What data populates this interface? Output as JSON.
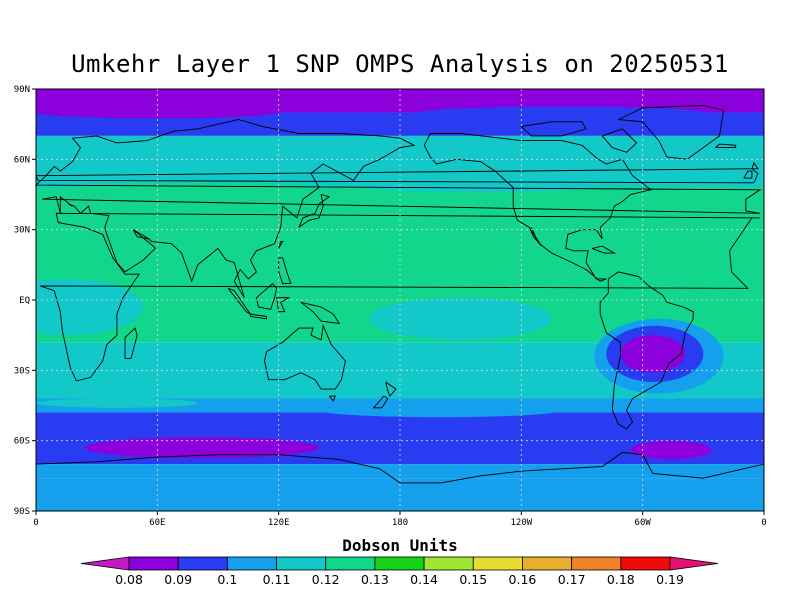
{
  "title": "Umkehr Layer 1 SNP OMPS Analysis on 20250531",
  "units": "Dobson Units",
  "map": {
    "lat_range": [
      -90,
      90
    ],
    "lon_range": [
      0,
      360
    ],
    "lat_ticks": [
      {
        "lat": 90,
        "label": "90N"
      },
      {
        "lat": 60,
        "label": "60N"
      },
      {
        "lat": 30,
        "label": "30N"
      },
      {
        "lat": 0,
        "label": "EQ"
      },
      {
        "lat": -30,
        "label": "30S"
      },
      {
        "lat": -60,
        "label": "60S"
      },
      {
        "lat": -90,
        "label": "90S"
      }
    ],
    "lon_ticks": [
      {
        "lon": 0,
        "label": "0"
      },
      {
        "lon": 60,
        "label": "60E"
      },
      {
        "lon": 120,
        "label": "120E"
      },
      {
        "lon": 180,
        "label": "180"
      },
      {
        "lon": 240,
        "label": "120W"
      },
      {
        "lon": 300,
        "label": "60W"
      },
      {
        "lon": 360,
        "label": "0"
      }
    ],
    "grid": "dashed"
  },
  "colorbar": {
    "labels": [
      "0.08",
      "0.09",
      "0.1",
      "0.11",
      "0.12",
      "0.13",
      "0.14",
      "0.15",
      "0.16",
      "0.17",
      "0.18",
      "0.19"
    ],
    "low_color": "#c418c4",
    "colors": [
      "#8c00dc",
      "#2a3cf2",
      "#14a0ec",
      "#12c8c8",
      "#12d68c",
      "#14d214",
      "#a0e632",
      "#e6dc32",
      "#e6af2d",
      "#f08228",
      "#f00a0a"
    ],
    "high_color": "#e60f78"
  },
  "field": {
    "bands": [
      {
        "lat": [
          80,
          90
        ],
        "value": 0.085
      },
      {
        "lat": [
          70,
          80
        ],
        "value": 0.095
      },
      {
        "lat": [
          48,
          70
        ],
        "value": 0.115
      },
      {
        "lat": [
          -18,
          48
        ],
        "value": 0.125
      },
      {
        "lat": [
          -42,
          -18
        ],
        "value": 0.115
      },
      {
        "lat": [
          -48,
          -42
        ],
        "value": 0.105
      },
      {
        "lat": [
          -70,
          -48
        ],
        "value": 0.095
      },
      {
        "lat": [
          -76,
          -70
        ],
        "value": 0.105
      },
      {
        "lat": [
          -90,
          -76
        ],
        "value": 0.105
      }
    ],
    "features": [
      {
        "name": "indian-ocean-tropical-low",
        "lon": 15,
        "lat": -3,
        "rlon": 38,
        "rlat": 12,
        "value": 0.115
      },
      {
        "name": "pacific-tropical-low",
        "lon": 210,
        "lat": -8,
        "rlon": 45,
        "rlat": 9,
        "value": 0.115
      },
      {
        "name": "south-america-ring-3",
        "lon": 308,
        "lat": -24,
        "rlon": 32,
        "rlat": 16,
        "value": 0.105
      },
      {
        "name": "south-america-ring-2",
        "lon": 306,
        "lat": -23,
        "rlon": 24,
        "rlat": 12,
        "value": 0.095
      },
      {
        "name": "south-america-core",
        "lon": 305,
        "lat": -23,
        "rlon": 16,
        "rlat": 8,
        "value": 0.085
      },
      {
        "name": "southern-ocean-min-west",
        "lon": 82,
        "lat": -63,
        "rlon": 58,
        "rlat": 4.5,
        "value": 0.085
      },
      {
        "name": "southern-ocean-min-east",
        "lon": 314,
        "lat": -64,
        "rlon": 20,
        "rlat": 4,
        "value": 0.085
      }
    ]
  }
}
